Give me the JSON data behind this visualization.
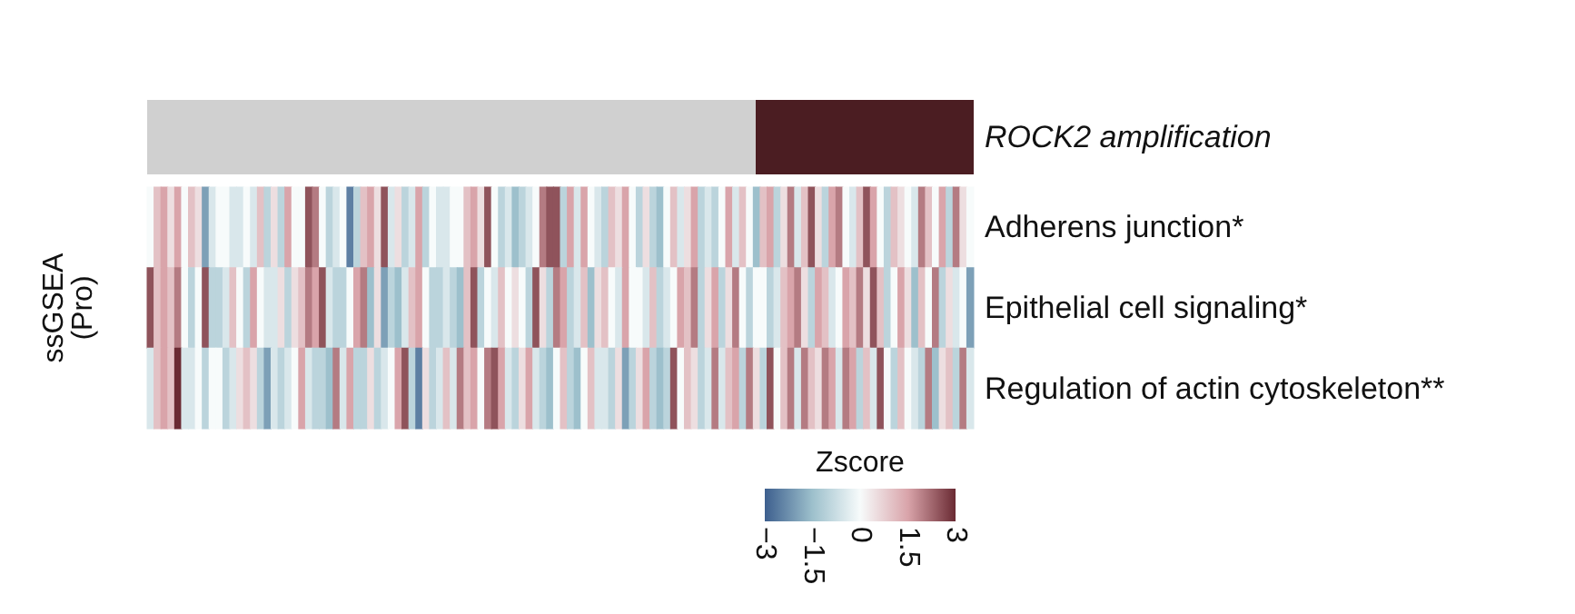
{
  "chart_data": {
    "type": "heatmap",
    "ylabel": "ssGSEA\n(Pro)",
    "clabel": "Zscore",
    "categories": [
      null,
      null,
      null,
      null,
      null,
      null,
      null,
      null,
      null,
      null,
      null,
      null,
      null,
      null,
      null,
      null,
      null,
      null,
      null,
      null,
      null,
      null,
      null,
      null,
      null,
      null,
      null,
      null,
      null,
      null,
      null,
      null,
      null,
      null,
      null,
      null,
      null,
      null,
      null,
      null,
      null,
      null,
      null,
      null,
      null,
      null,
      null,
      null,
      null,
      null,
      null,
      null,
      null,
      null,
      null,
      null,
      null,
      null,
      null,
      null,
      null,
      null,
      null,
      null,
      null,
      null,
      null,
      null,
      null,
      null,
      null,
      null,
      null,
      null,
      null,
      null,
      null,
      null,
      null,
      null,
      null,
      null,
      null,
      null,
      null,
      null,
      null,
      null,
      null,
      null,
      null,
      null,
      null,
      null,
      null,
      null,
      null,
      null,
      null,
      null,
      null,
      null,
      null,
      null,
      null,
      null,
      null,
      null,
      null,
      null,
      null,
      null,
      null,
      null,
      null,
      null,
      null,
      null,
      null,
      null
    ],
    "y_categories": [
      "Adherens junction*",
      "Epithelial cell signaling*",
      "Regulation of actin cytoskeleton**"
    ],
    "cells": [
      [
        0,
        1,
        1.5,
        0.5,
        1.5,
        0,
        1,
        0.5,
        -2,
        -0.5,
        0,
        0,
        -0.5,
        -0.5,
        0,
        -0.5,
        1,
        -1,
        0.5,
        -1,
        1.5,
        0,
        0,
        2.5,
        2,
        0,
        -1,
        -0.5,
        0,
        -2.5,
        -1,
        1,
        1.5,
        0.5,
        2.5,
        -0.5,
        0.5,
        -1,
        -0.5,
        1.5,
        -1,
        0,
        -0.5,
        -0.5,
        0,
        0,
        1,
        1.5,
        0.5,
        2.5,
        0,
        -1,
        -0.5,
        -1.5,
        -1,
        -0.5,
        0,
        2,
        2.5,
        2.5,
        -1,
        1.5,
        -0.5,
        1.5,
        0,
        -0.5,
        -1,
        1,
        0.5,
        1.5,
        0,
        -1,
        0.5,
        -1,
        -1.5,
        0,
        1,
        -0.5,
        0.5,
        1.5,
        -1,
        -0.5,
        -1,
        0,
        1.5,
        -0.5,
        1,
        0,
        -1.5,
        1,
        1.5,
        -1,
        0.5,
        2,
        -0.5,
        1,
        2.5,
        0.5,
        -1,
        1.5,
        2,
        0,
        -0.5,
        1,
        2.5,
        1.5,
        0,
        -1,
        1,
        0.5,
        0,
        -0.5,
        2,
        1,
        0,
        1.5,
        -1,
        2,
        0.5,
        0
      ],
      [
        2.5,
        1,
        1.5,
        1,
        2,
        0,
        -1,
        0,
        2.5,
        -1,
        -1,
        -0.5,
        1,
        0,
        -1,
        1.5,
        0,
        -0.5,
        -0.5,
        0.5,
        -1,
        0.5,
        1,
        2,
        1.5,
        2.5,
        -0.5,
        -1,
        -1,
        0,
        1.5,
        2,
        -1.5,
        0.5,
        -2,
        -1,
        -1.5,
        -0.5,
        1,
        1.5,
        0,
        -1,
        -1,
        -0.5,
        -1,
        -1.5,
        1,
        2.5,
        -1,
        0,
        -0.5,
        1,
        0,
        0.5,
        0,
        -1,
        2.5,
        0.5,
        -1,
        2,
        1.5,
        -1,
        -0.5,
        1,
        -1.5,
        0.5,
        1,
        0,
        -0.5,
        1.5,
        0,
        0,
        -0.5,
        1,
        -1,
        -0.5,
        0,
        1.5,
        1,
        2,
        -1,
        0.5,
        1.5,
        -1,
        0.5,
        2,
        0,
        -1,
        0,
        0,
        -1,
        -0.5,
        1,
        1.5,
        2,
        0.5,
        -1,
        1.5,
        1,
        -0.5,
        0,
        1.5,
        1,
        2,
        0.5,
        2.5,
        1,
        -1,
        0,
        1.5,
        0.5,
        -1.5,
        1,
        0,
        2,
        -1,
        0.5,
        -0.5,
        0,
        -2
      ],
      [
        -0.5,
        1,
        1.5,
        1,
        3,
        -0.5,
        -0.5,
        0,
        -1,
        0,
        0,
        -1,
        -0.5,
        0.5,
        1,
        0.5,
        -1,
        -2,
        -0.5,
        -1,
        -0.5,
        0,
        1.5,
        -0.5,
        -1,
        -1,
        -1.5,
        2,
        -0.5,
        1.5,
        -1,
        -1,
        0.5,
        -1,
        -0.5,
        0,
        1.5,
        2.5,
        -1,
        -2.5,
        0.5,
        -1,
        -0.5,
        1,
        -0.5,
        2,
        1,
        1.5,
        0,
        2,
        2.5,
        1.5,
        -0.5,
        -1,
        0.5,
        1.5,
        -0.5,
        -1,
        -1.5,
        0,
        1,
        -1,
        -1.5,
        0,
        1,
        -0.5,
        -0.5,
        -1,
        0.5,
        -2,
        -1,
        0.5,
        1.5,
        -1,
        -1.5,
        -1,
        2.5,
        0,
        1,
        0.5,
        -1,
        -0.5,
        2,
        -0.5,
        1,
        1.5,
        -1,
        2,
        0.5,
        -1,
        2.5,
        0,
        1,
        2,
        -0.5,
        2,
        1,
        0.5,
        2,
        1.5,
        -0.5,
        2,
        1.5,
        -1,
        1,
        -0.5,
        2.5,
        0,
        -1,
        1,
        0,
        -0.5,
        -1,
        2,
        -1.5,
        0.5,
        1,
        -1,
        2,
        -0.5
      ]
    ],
    "clim": [
      -3,
      3
    ],
    "cticks": [
      -3,
      -1.5,
      0,
      1.5,
      3
    ],
    "annotations": [
      "ROCK2 amplification"
    ]
  }
}
